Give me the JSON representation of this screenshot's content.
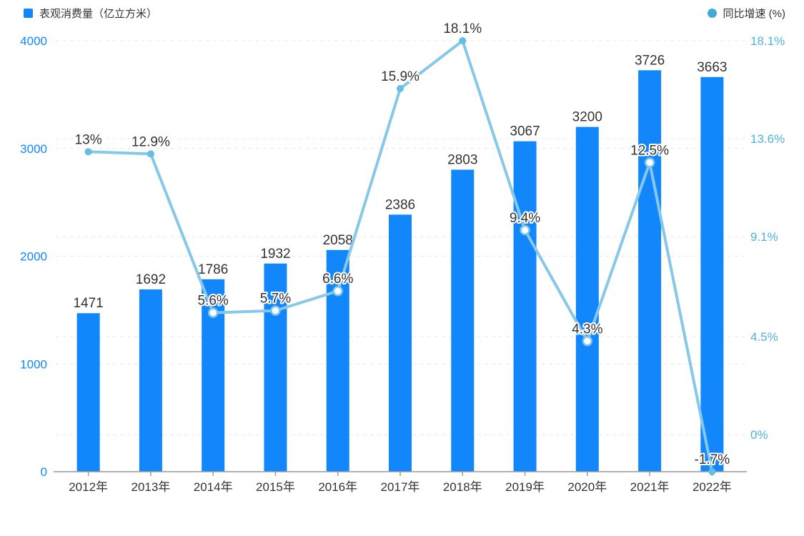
{
  "legend": {
    "bar_label": "表观消费量（亿立方米）",
    "line_label": "同比增速 (%)"
  },
  "colors": {
    "bar": "#1287fc",
    "line": "#87c7e8",
    "marker_fill": "#64bde2",
    "marker_hollow_stroke": "#7ec4e6",
    "left_axis_label": "#1287fc",
    "right_axis_label": "#4db3dc",
    "legend_dot": "#45a9d6",
    "data_label": "#333333",
    "x_label": "#333333",
    "axis_line": "#999999",
    "gridline": "#e8e8e8"
  },
  "chart_data": {
    "type": "bar+line",
    "categories": [
      "2012年",
      "2013年",
      "2014年",
      "2015年",
      "2016年",
      "2017年",
      "2018年",
      "2019年",
      "2020年",
      "2021年",
      "2022年"
    ],
    "series": [
      {
        "name": "表观消费量（亿立方米）",
        "type": "bar",
        "values": [
          1471,
          1692,
          1786,
          1932,
          2058,
          2386,
          2803,
          3067,
          3200,
          3726,
          3663
        ],
        "labels": [
          "1471",
          "1692",
          "1786",
          "1932",
          "2058",
          "2386",
          "2803",
          "3067",
          "3200",
          "3726",
          "3663"
        ]
      },
      {
        "name": "同比增速 (%)",
        "type": "line",
        "values": [
          13,
          12.9,
          5.6,
          5.7,
          6.6,
          15.9,
          18.1,
          9.4,
          4.3,
          12.5,
          -1.7
        ],
        "labels": [
          "13%",
          "12.9%",
          "5.6%",
          "5.7%",
          "6.6%",
          "15.9%",
          "18.1%",
          "9.4%",
          "4.3%",
          "12.5%",
          "-1.7%"
        ],
        "hollow_markers": [
          false,
          false,
          true,
          true,
          true,
          false,
          false,
          true,
          true,
          true,
          false
        ]
      }
    ],
    "left_axis": {
      "min": 0,
      "max": 4000,
      "tick_values": [
        0,
        1000,
        2000,
        3000,
        4000
      ],
      "tick_labels": [
        "0",
        "1000",
        "2000",
        "3000",
        "4000"
      ]
    },
    "right_axis": {
      "min": -1.7,
      "max": 18.1,
      "tick_values": [
        0,
        4.5,
        9.1,
        13.6,
        18.1
      ],
      "tick_labels": [
        "0%",
        "4.5%",
        "9.1%",
        "13.6%",
        "18.1%"
      ]
    },
    "grid": "dashed",
    "legend_position": "top"
  }
}
